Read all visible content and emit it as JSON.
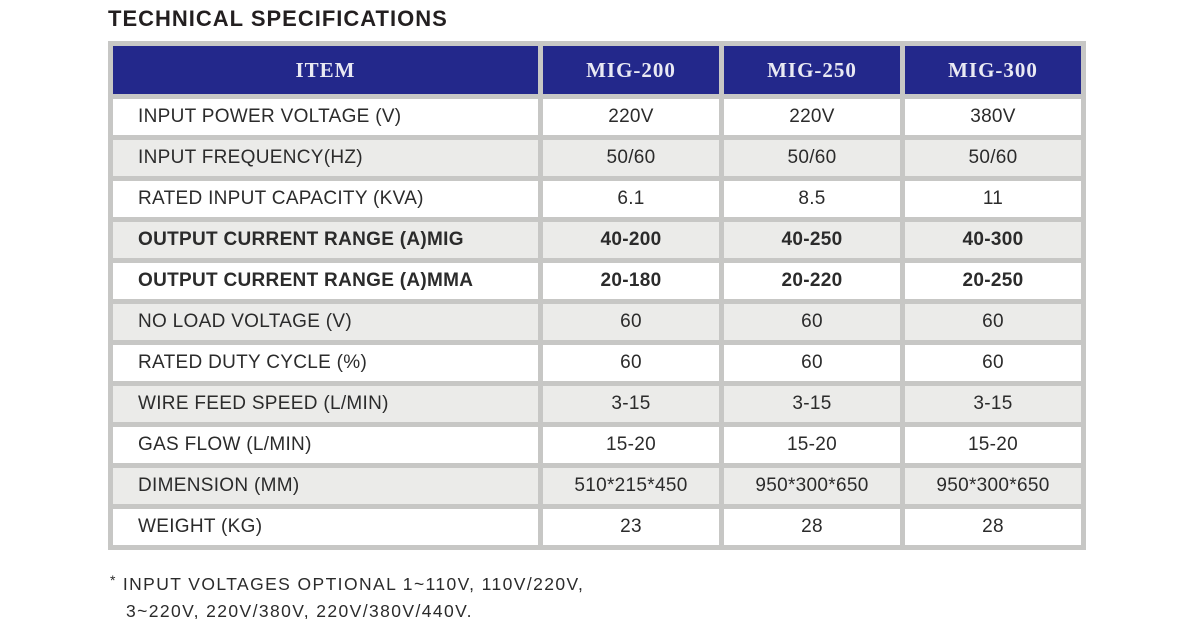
{
  "title": "TECHNICAL SPECIFICATIONS",
  "colors": {
    "header_bg": "#23288b",
    "header_text": "#e9e9f3",
    "row_alt_bg": "#ebebe9",
    "grid": "#c7c7c5"
  },
  "table": {
    "header": {
      "item": "ITEM",
      "columns": [
        "MIG-200",
        "MIG-250",
        "MIG-300"
      ]
    },
    "rows": [
      {
        "label": "INPUT POWER VOLTAGE (V)",
        "values": [
          "220V",
          "220V",
          "380V"
        ],
        "emphasis": false
      },
      {
        "label": "INPUT FREQUENCY(HZ)",
        "values": [
          "50/60",
          "50/60",
          "50/60"
        ],
        "emphasis": false
      },
      {
        "label": "RATED INPUT CAPACITY (KVA)",
        "values": [
          "6.1",
          "8.5",
          "11"
        ],
        "emphasis": false
      },
      {
        "label": "OUTPUT CURRENT RANGE (A)MIG",
        "values": [
          "40-200",
          "40-250",
          "40-300"
        ],
        "emphasis": true
      },
      {
        "label": "OUTPUT CURRENT RANGE (A)MMA",
        "values": [
          "20-180",
          "20-220",
          "20-250"
        ],
        "emphasis": true
      },
      {
        "label": "NO LOAD VOLTAGE (V)",
        "values": [
          "60",
          "60",
          "60"
        ],
        "emphasis": false
      },
      {
        "label": "RATED DUTY CYCLE (%)",
        "values": [
          "60",
          "60",
          "60"
        ],
        "emphasis": false
      },
      {
        "label": "WIRE FEED SPEED (L/MIN)",
        "values": [
          "3-15",
          "3-15",
          "3-15"
        ],
        "emphasis": false
      },
      {
        "label": "GAS FLOW (L/MIN)",
        "values": [
          "15-20",
          "15-20",
          "15-20"
        ],
        "emphasis": false
      },
      {
        "label": "DIMENSION (MM)",
        "values": [
          "510*215*450",
          "950*300*650",
          "950*300*650"
        ],
        "emphasis": false
      },
      {
        "label": "WEIGHT (KG)",
        "values": [
          "23",
          "28",
          "28"
        ],
        "emphasis": false
      }
    ]
  },
  "footnote": {
    "marker": "*",
    "line1": "INPUT VOLTAGES OPTIONAL 1~110V, 110V/220V,",
    "line2": "3~220V, 220V/380V, 220V/380V/440V."
  }
}
